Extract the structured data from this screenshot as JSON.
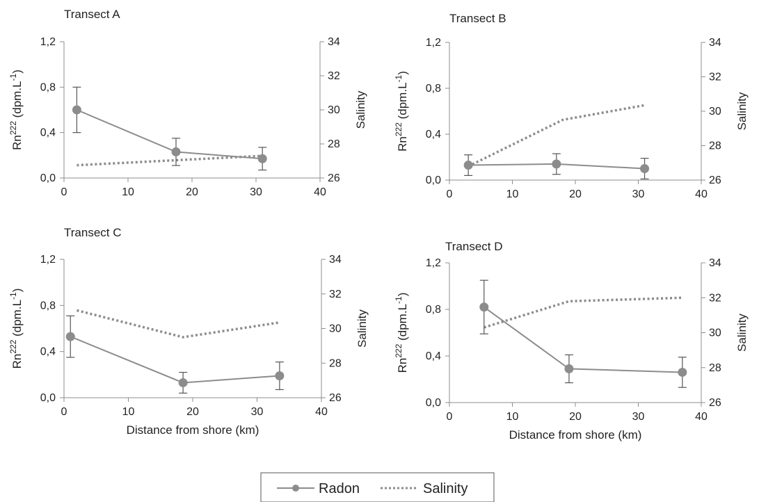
{
  "chart_data": [
    {
      "type": "line",
      "title": "Transect A",
      "xlabel": "",
      "ylabel_main": "Rn",
      "ylabel_sup": "222",
      "ylabel_unit_pre": " (dpm.L",
      "ylabel_unit_sup": "-1",
      "ylabel_unit_post": ")",
      "y2label": "Salinity",
      "xlim": [
        0,
        40
      ],
      "ylim": [
        0,
        1.2
      ],
      "y2lim": [
        26,
        34
      ],
      "xticks": [
        "0",
        "10",
        "20",
        "30",
        "40"
      ],
      "yticks": [
        "0,0",
        "0,4",
        "0,8",
        "1,2"
      ],
      "y2ticks": [
        "26",
        "28",
        "30",
        "32",
        "34"
      ],
      "radon": {
        "x": [
          2,
          17.5,
          31
        ],
        "y": [
          0.6,
          0.23,
          0.17
        ],
        "err": [
          0.2,
          0.12,
          0.1
        ]
      },
      "salinity": {
        "x": [
          2,
          31
        ],
        "y": [
          26.75,
          27.3
        ]
      }
    },
    {
      "type": "line",
      "title": "Transect B",
      "xlabel": "",
      "ylabel_main": "Rn",
      "ylabel_sup": "222",
      "ylabel_unit_pre": " (dpm.L",
      "ylabel_unit_sup": "-1",
      "ylabel_unit_post": ")",
      "y2label": "Salinity",
      "xlim": [
        0,
        40
      ],
      "ylim": [
        0,
        1.2
      ],
      "y2lim": [
        26,
        34
      ],
      "xticks": [
        "0",
        "10",
        "20",
        "30",
        "40"
      ],
      "yticks": [
        "0,0",
        "0,4",
        "0,8",
        "1,2"
      ],
      "y2ticks": [
        "26",
        "28",
        "30",
        "32",
        "34"
      ],
      "radon": {
        "x": [
          3,
          17,
          31
        ],
        "y": [
          0.13,
          0.14,
          0.1
        ],
        "err": [
          0.09,
          0.09,
          0.09
        ]
      },
      "salinity": {
        "x": [
          3,
          18,
          31
        ],
        "y": [
          26.8,
          29.5,
          30.35
        ]
      }
    },
    {
      "type": "line",
      "title": "Transect C",
      "xlabel": "Distance from shore (km)",
      "ylabel_main": "Rn",
      "ylabel_sup": "222",
      "ylabel_unit_pre": " (dpm.L",
      "ylabel_unit_sup": "-1",
      "ylabel_unit_post": ")",
      "y2label": "Salinity",
      "xlim": [
        0,
        40
      ],
      "ylim": [
        0,
        1.2
      ],
      "y2lim": [
        26,
        34
      ],
      "xticks": [
        "0",
        "10",
        "20",
        "30",
        "40"
      ],
      "yticks": [
        "0,0",
        "0,4",
        "0,8",
        "1,2"
      ],
      "y2ticks": [
        "26",
        "28",
        "30",
        "32",
        "34"
      ],
      "radon": {
        "x": [
          1,
          18.5,
          33.5
        ],
        "y": [
          0.53,
          0.13,
          0.19
        ],
        "err": [
          0.18,
          0.09,
          0.12
        ]
      },
      "salinity": {
        "x": [
          2,
          18.5,
          33.5
        ],
        "y": [
          31.05,
          29.5,
          30.35
        ]
      }
    },
    {
      "type": "line",
      "title": "Transect D",
      "xlabel": "Distance from shore (km)",
      "ylabel_main": "Rn",
      "ylabel_sup": "222",
      "ylabel_unit_pre": " (dpm.L",
      "ylabel_unit_sup": "-1",
      "ylabel_unit_post": ")",
      "y2label": "Salinity",
      "xlim": [
        0,
        40
      ],
      "ylim": [
        0,
        1.2
      ],
      "y2lim": [
        26,
        34
      ],
      "xticks": [
        "0",
        "10",
        "20",
        "30",
        "40"
      ],
      "yticks": [
        "0,0",
        "0,4",
        "0,8",
        "1,2"
      ],
      "y2ticks": [
        "26",
        "28",
        "30",
        "32",
        "34"
      ],
      "radon": {
        "x": [
          5.5,
          19,
          37
        ],
        "y": [
          0.82,
          0.29,
          0.26
        ],
        "err": [
          0.23,
          0.12,
          0.13
        ]
      },
      "salinity": {
        "x": [
          5.5,
          19,
          37
        ],
        "y": [
          30.3,
          31.8,
          32
        ]
      }
    }
  ],
  "legend": {
    "radon": "Radon",
    "salinity": "Salinity"
  },
  "colors": {
    "radon": "#8c8c8c",
    "salinity": "#8c8c8c",
    "axis": "#8c8c8c",
    "text": "#222222"
  }
}
